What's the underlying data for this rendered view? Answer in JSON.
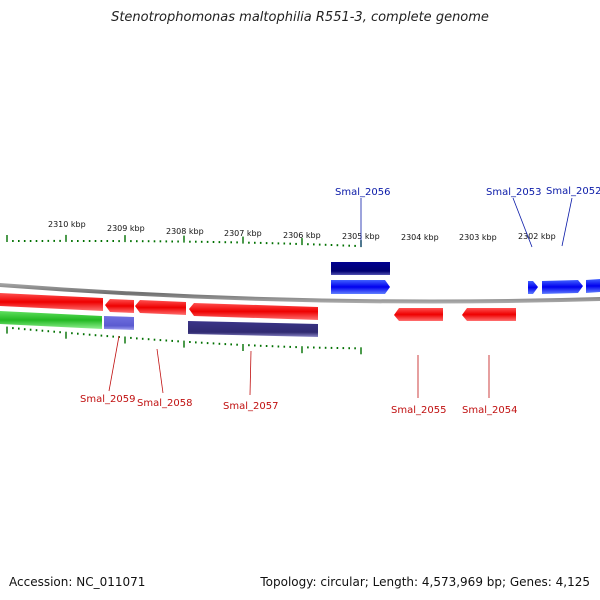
{
  "title": "Stenotrophomonas maltophilia R551-3, complete genome",
  "footer": {
    "accession": "Accession: NC_011071",
    "summary": "Topology: circular; Length: 4,573,969 bp; Genes: 4,125"
  },
  "colors": {
    "forward_gene": "#0000ff",
    "reverse_gene": "#ff0000",
    "forward_feature": "#000080",
    "reverse_feature": "#3d3580",
    "green_track": "#22c022",
    "tick": "#007000",
    "backbone": "#808080"
  },
  "scale_labels": [
    "2310 kbp",
    "2309 kbp",
    "2308 kbp",
    "2307 kbp",
    "2306 kbp",
    "2305 kbp",
    "2304 kbp",
    "2303 kbp",
    "2302 kbp"
  ],
  "genes_top": [
    {
      "label": "Smal_2056"
    },
    {
      "label": "Smal_2053"
    },
    {
      "label": "Smal_2052"
    }
  ],
  "genes_bottom": [
    {
      "label": "Smal_2059"
    },
    {
      "label": "Smal_2058"
    },
    {
      "label": "Smal_2057"
    },
    {
      "label": "Smal_2055"
    },
    {
      "label": "Smal_2054"
    }
  ]
}
